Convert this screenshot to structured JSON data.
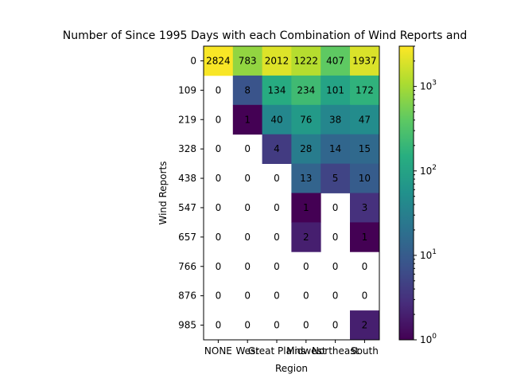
{
  "chart_data": {
    "type": "heatmap",
    "title": "Number of Since 1995 Days with each Combination of Wind Reports and",
    "xlabel": "Region",
    "ylabel": "Wind Reports",
    "x_categories": [
      "NONE",
      "West",
      "Great Plains",
      "Midwest",
      "Northeast",
      "South"
    ],
    "x_tick_labels": [
      "NONE",
      "West",
      "Great Plains",
      "Midwest",
      "Northeast",
      "South"
    ],
    "y_categories": [
      "0",
      "109",
      "219",
      "328",
      "438",
      "547",
      "657",
      "766",
      "876",
      "985"
    ],
    "values": [
      [
        2824,
        783,
        2012,
        1222,
        407,
        1937
      ],
      [
        0,
        8,
        134,
        234,
        101,
        172
      ],
      [
        0,
        1,
        40,
        76,
        38,
        47
      ],
      [
        0,
        0,
        4,
        28,
        14,
        15
      ],
      [
        0,
        0,
        0,
        13,
        5,
        10
      ],
      [
        0,
        0,
        0,
        1,
        0,
        3
      ],
      [
        0,
        0,
        0,
        2,
        0,
        1
      ],
      [
        0,
        0,
        0,
        0,
        0,
        0
      ],
      [
        0,
        0,
        0,
        0,
        0,
        0
      ],
      [
        0,
        0,
        0,
        0,
        0,
        2
      ]
    ],
    "colorscale": "viridis",
    "color_scale_type": "log",
    "color_range": [
      1,
      3000
    ],
    "colorbar_ticks": [
      {
        "base": "10",
        "exp": "0",
        "value": 1
      },
      {
        "base": "10",
        "exp": "1",
        "value": 10
      },
      {
        "base": "10",
        "exp": "2",
        "value": 100
      },
      {
        "base": "10",
        "exp": "3",
        "value": 1000
      }
    ],
    "zero_cells_color": "#ffffff",
    "grid": false
  }
}
